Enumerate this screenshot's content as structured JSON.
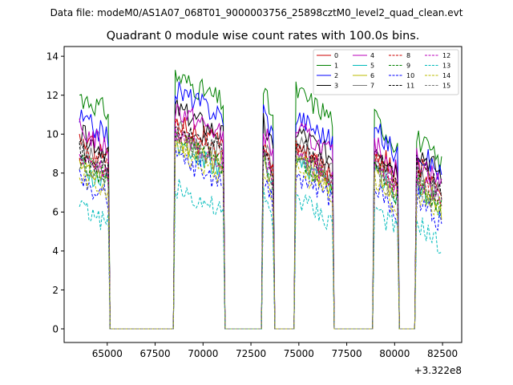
{
  "chart_data": {
    "type": "line",
    "suptitle": "Data file: modeM0/AS1A07_068T01_9000003756_25898cztM0_level2_quad_clean.evt",
    "title": "Quadrant 0 module wise count rates with 100.0s bins.",
    "xlabel": "",
    "ylabel": "",
    "x_offset_label": "+3.322e8",
    "xlim": [
      62750,
      83500
    ],
    "ylim": [
      -0.7,
      14.5
    ],
    "xticks": [
      65000,
      67500,
      70000,
      72500,
      75000,
      77500,
      80000,
      82500
    ],
    "xtick_labels": [
      "65000",
      "67500",
      "70000",
      "72500",
      "75000",
      "77500",
      "80000",
      "82500"
    ],
    "yticks": [
      0,
      2,
      4,
      6,
      8,
      10,
      12,
      14
    ],
    "ytick_labels": [
      "0",
      "2",
      "4",
      "6",
      "8",
      "10",
      "12",
      "14"
    ],
    "segments": [
      [
        63550,
        65050
      ],
      [
        68550,
        71050
      ],
      [
        73150,
        73650
      ],
      [
        74850,
        76750
      ],
      [
        78950,
        80150
      ],
      [
        81150,
        82450
      ]
    ],
    "gap_drop_bin": 100,
    "legend": {
      "location": "top-right",
      "ncol": 4
    },
    "series": [
      {
        "name": "0",
        "color": "#cc0000",
        "dash": "solid",
        "levels": [
          9.8,
          10.8,
          9.8,
          9.3,
          9.3,
          8.5
        ]
      },
      {
        "name": "1",
        "color": "#008000",
        "dash": "solid",
        "levels": [
          12.0,
          13.0,
          12.2,
          12.2,
          10.8,
          9.8
        ]
      },
      {
        "name": "2",
        "color": "#0000ff",
        "dash": "solid",
        "levels": [
          10.8,
          12.3,
          11.3,
          11.0,
          10.3,
          9.3
        ]
      },
      {
        "name": "3",
        "color": "#000000",
        "dash": "solid",
        "levels": [
          10.0,
          11.3,
          10.5,
          10.2,
          9.5,
          9.3
        ]
      },
      {
        "name": "4",
        "color": "#bb00bb",
        "dash": "solid",
        "levels": [
          10.2,
          11.3,
          10.3,
          10.3,
          9.5,
          8.8
        ]
      },
      {
        "name": "5",
        "color": "#00bbbb",
        "dash": "solid",
        "levels": [
          8.3,
          9.6,
          8.6,
          8.8,
          8.2,
          7.5
        ]
      },
      {
        "name": "6",
        "color": "#bbbb00",
        "dash": "solid",
        "levels": [
          8.5,
          9.8,
          8.8,
          8.8,
          8.3,
          7.6
        ]
      },
      {
        "name": "7",
        "color": "#777777",
        "dash": "solid",
        "levels": [
          9.3,
          10.3,
          9.5,
          9.5,
          8.8,
          8.2
        ]
      },
      {
        "name": "8",
        "color": "#cc0000",
        "dash": "dashed",
        "levels": [
          9.0,
          10.2,
          9.3,
          9.2,
          8.6,
          8.0
        ]
      },
      {
        "name": "9",
        "color": "#008000",
        "dash": "dashed",
        "levels": [
          8.6,
          9.8,
          8.8,
          8.8,
          8.2,
          7.6
        ]
      },
      {
        "name": "10",
        "color": "#0000ff",
        "dash": "dashed",
        "levels": [
          7.6,
          8.8,
          7.8,
          8.0,
          7.2,
          6.8
        ]
      },
      {
        "name": "11",
        "color": "#000000",
        "dash": "dashed",
        "levels": [
          9.2,
          10.5,
          9.6,
          9.5,
          9.0,
          8.5
        ]
      },
      {
        "name": "12",
        "color": "#bb00bb",
        "dash": "dashed",
        "levels": [
          8.8,
          10.0,
          9.0,
          9.0,
          8.4,
          7.8
        ]
      },
      {
        "name": "13",
        "color": "#00bbbb",
        "dash": "dashed",
        "levels": [
          6.3,
          7.3,
          6.8,
          6.8,
          6.3,
          5.5
        ]
      },
      {
        "name": "14",
        "color": "#bbbb00",
        "dash": "dashed",
        "levels": [
          8.0,
          9.3,
          8.3,
          8.3,
          7.6,
          7.0
        ]
      },
      {
        "name": "15",
        "color": "#777777",
        "dash": "dashed",
        "levels": [
          8.6,
          9.8,
          8.8,
          8.8,
          8.2,
          7.6
        ]
      }
    ]
  }
}
